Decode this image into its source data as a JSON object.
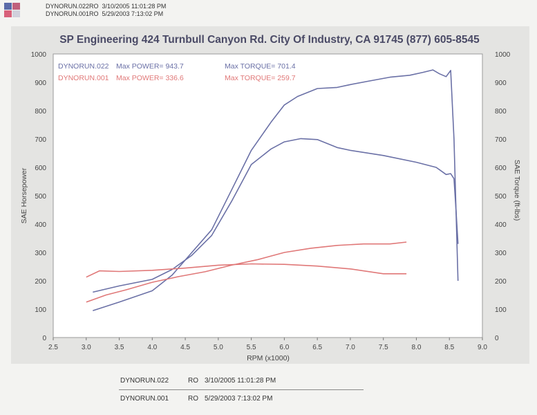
{
  "header": {
    "line1": "DYNORUN.022RO  3/10/2005 11:01:28 PM",
    "line2": "DYNORUN.001RO  5/29/2003 7:13:02 PM"
  },
  "colors": {
    "run022": "#6a70a6",
    "run001": "#e07878",
    "logo": [
      "#5a6aa8",
      "#c0607c",
      "#d8607a",
      "#d0d0dc"
    ]
  },
  "chart_data": {
    "type": "line",
    "title": "SP Engineering 424 Turnbull Canyon Rd. City Of Industry, CA 91745 (877) 605-8545",
    "xlabel": "RPM (x1000)",
    "ylabel_left": "SAE Horsepower",
    "ylabel_right": "SAE Torque (ft-lbs)",
    "xlim": [
      2.5,
      9.0
    ],
    "ylim": [
      0,
      1000
    ],
    "xticks": [
      "2.5",
      "3.0",
      "3.5",
      "4.0",
      "4.5",
      "5.0",
      "5.5",
      "6.0",
      "6.5",
      "7.0",
      "7.5",
      "8.0",
      "8.5",
      "9.0"
    ],
    "yticks": [
      "0",
      "100",
      "200",
      "300",
      "400",
      "500",
      "600",
      "700",
      "800",
      "900",
      "1000"
    ],
    "grid": false,
    "legend": [
      {
        "run": "DYNORUN.022",
        "power_label": "Max POWER=",
        "power": "943.7",
        "torque_label": "Max TORQUE=",
        "torque": "701.4",
        "color": "#6a70a6"
      },
      {
        "run": "DYNORUN.001",
        "power_label": "Max POWER=",
        "power": "336.6",
        "torque_label": "Max TORQUE=",
        "torque": "259.7",
        "color": "#e07878"
      }
    ],
    "series": [
      {
        "name": "DYNORUN.022",
        "measure": "power",
        "color": "#6a70a6",
        "x": [
          3.1,
          3.5,
          4.0,
          4.3,
          4.6,
          4.9,
          5.2,
          5.5,
          5.8,
          6.0,
          6.2,
          6.5,
          6.8,
          7.0,
          7.3,
          7.6,
          7.9,
          8.1,
          8.25,
          8.35,
          8.45,
          8.52,
          8.57,
          8.6,
          8.63
        ],
        "y": [
          95,
          125,
          165,
          220,
          300,
          380,
          520,
          660,
          760,
          820,
          850,
          878,
          882,
          892,
          905,
          918,
          925,
          935,
          943.7,
          930,
          920,
          942,
          700,
          450,
          200
        ]
      },
      {
        "name": "DYNORUN.022",
        "measure": "torque",
        "color": "#6a70a6",
        "x": [
          3.1,
          3.5,
          4.0,
          4.3,
          4.6,
          4.9,
          5.2,
          5.5,
          5.8,
          6.0,
          6.25,
          6.5,
          6.8,
          7.0,
          7.5,
          8.0,
          8.3,
          8.45,
          8.52,
          8.57,
          8.6,
          8.63
        ],
        "y": [
          160,
          182,
          205,
          240,
          290,
          360,
          480,
          610,
          665,
          690,
          701.4,
          698,
          670,
          660,
          642,
          618,
          600,
          575,
          578,
          560,
          450,
          330
        ]
      },
      {
        "name": "DYNORUN.001",
        "measure": "power",
        "color": "#e07878",
        "x": [
          3.0,
          3.3,
          3.6,
          4.0,
          4.4,
          4.8,
          5.2,
          5.6,
          6.0,
          6.4,
          6.8,
          7.2,
          7.6,
          7.85
        ],
        "y": [
          125,
          150,
          168,
          195,
          215,
          232,
          255,
          275,
          300,
          315,
          325,
          330,
          330,
          336.6
        ]
      },
      {
        "name": "DYNORUN.001",
        "measure": "torque",
        "color": "#e07878",
        "x": [
          3.0,
          3.2,
          3.5,
          4.0,
          4.5,
          5.0,
          5.5,
          6.0,
          6.5,
          7.0,
          7.5,
          7.85
        ],
        "y": [
          213,
          235,
          233,
          237,
          245,
          255,
          259.7,
          258,
          252,
          242,
          225,
          225
        ]
      }
    ]
  },
  "footer": {
    "rows": [
      {
        "file": "DYNORUN.022",
        "code": "RO",
        "date": "3/10/2005 11:01:28 PM"
      },
      {
        "file": "DYNORUN.001",
        "code": "RO",
        "date": "5/29/2003 7:13:02 PM"
      }
    ]
  }
}
